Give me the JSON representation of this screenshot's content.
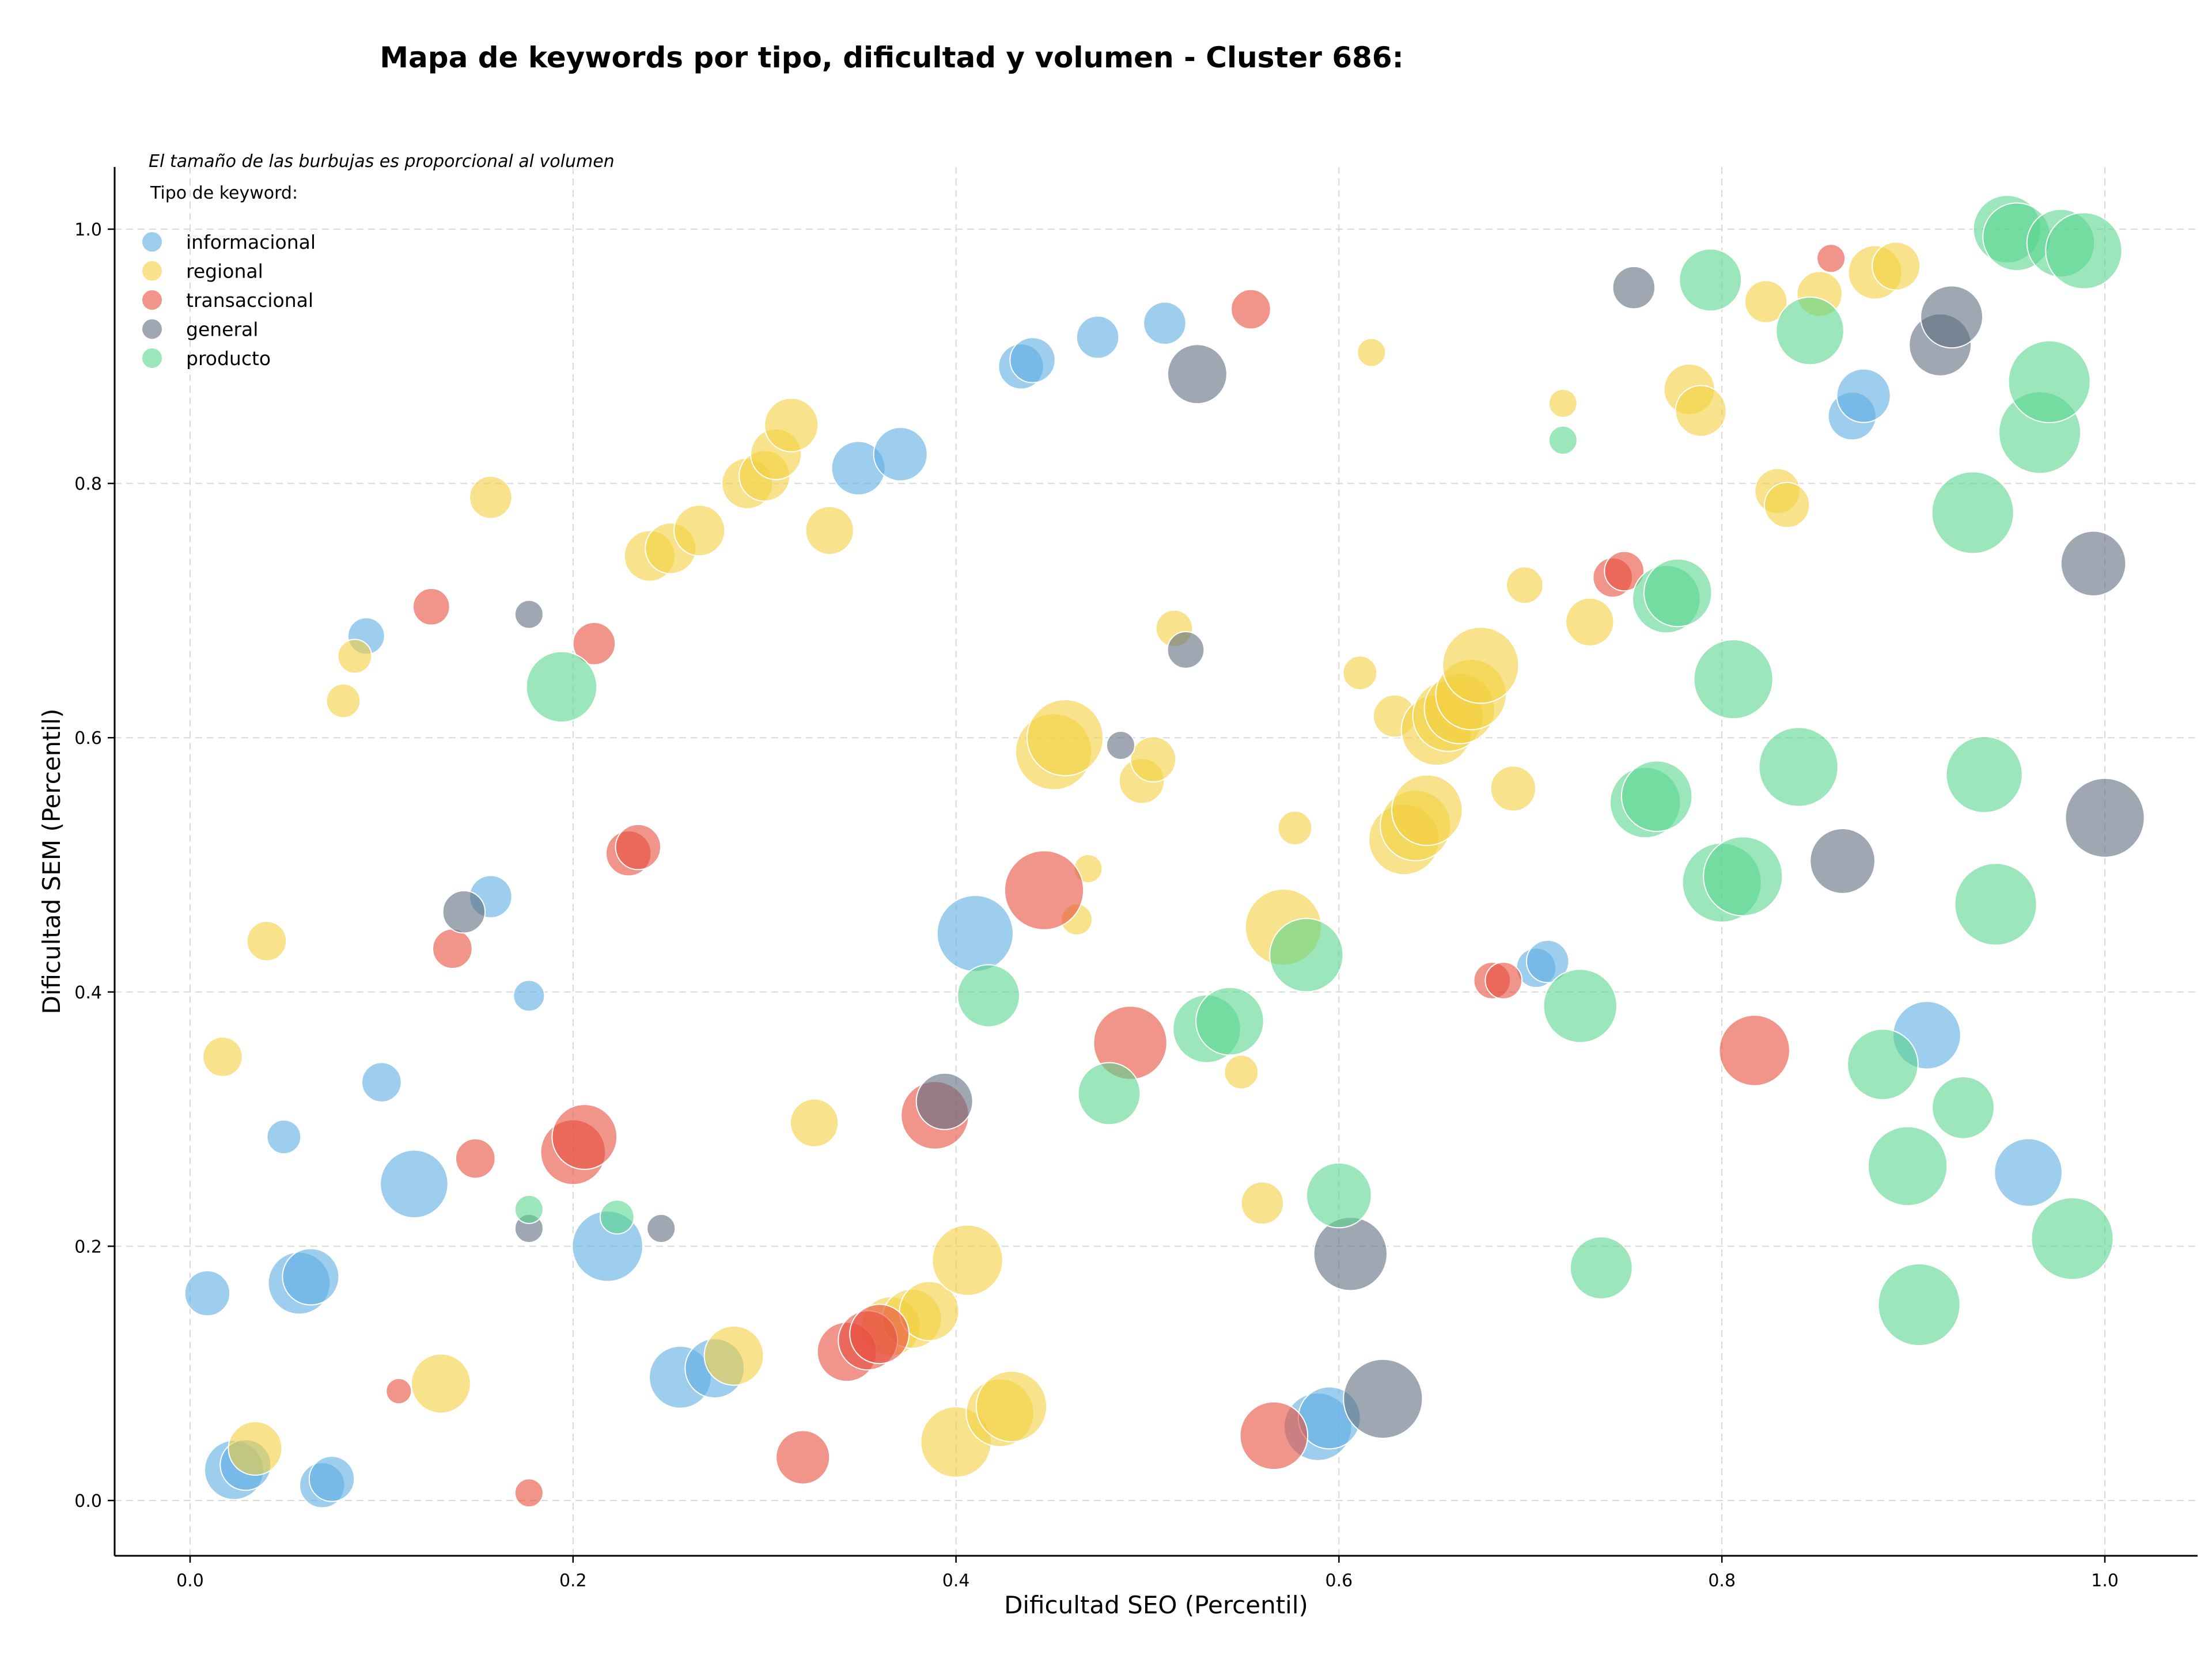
{
  "chart_data": {
    "type": "scatter",
    "title": "Mapa de keywords por tipo, dificultad y volumen - Cluster 686:",
    "xlabel": "Dificultad SEO (Percentil)",
    "ylabel": "Dificultad SEM (Percentil)",
    "xlim": [
      -0.04,
      1.05
    ],
    "ylim": [
      -0.04,
      1.05
    ],
    "xticks": [
      "0.0",
      "0.2",
      "0.4",
      "0.6",
      "0.8",
      "1.0"
    ],
    "yticks": [
      "0.0",
      "0.2",
      "0.4",
      "0.6",
      "0.8",
      "1.0"
    ],
    "grid": true,
    "legend_placement": "top-left",
    "legend_title": "Tipo de keyword:",
    "note": "El tamaño de las burbujas es proporcional al volumen",
    "series": [
      {
        "name": "informacional",
        "color": "#5DADE2",
        "points": [
          {
            "x": 0.009,
            "y": 0.163,
            "r": 16
          },
          {
            "x": 0.023,
            "y": 0.024,
            "r": 21
          },
          {
            "x": 0.029,
            "y": 0.028,
            "r": 18
          },
          {
            "x": 0.049,
            "y": 0.286,
            "r": 12
          },
          {
            "x": 0.057,
            "y": 0.171,
            "r": 22
          },
          {
            "x": 0.063,
            "y": 0.176,
            "r": 20
          },
          {
            "x": 0.069,
            "y": 0.012,
            "r": 16
          },
          {
            "x": 0.074,
            "y": 0.017,
            "r": 16
          },
          {
            "x": 0.092,
            "y": 0.68,
            "r": 13
          },
          {
            "x": 0.1,
            "y": 0.329,
            "r": 14
          },
          {
            "x": 0.117,
            "y": 0.249,
            "r": 24
          },
          {
            "x": 0.157,
            "y": 0.475,
            "r": 15
          },
          {
            "x": 0.177,
            "y": 0.397,
            "r": 11
          },
          {
            "x": 0.218,
            "y": 0.2,
            "r": 25
          },
          {
            "x": 0.256,
            "y": 0.097,
            "r": 22
          },
          {
            "x": 0.274,
            "y": 0.104,
            "r": 21
          },
          {
            "x": 0.349,
            "y": 0.812,
            "r": 19
          },
          {
            "x": 0.371,
            "y": 0.823,
            "r": 19
          },
          {
            "x": 0.41,
            "y": 0.446,
            "r": 27
          },
          {
            "x": 0.434,
            "y": 0.892,
            "r": 16
          },
          {
            "x": 0.44,
            "y": 0.897,
            "r": 16
          },
          {
            "x": 0.474,
            "y": 0.915,
            "r": 15
          },
          {
            "x": 0.509,
            "y": 0.926,
            "r": 15
          },
          {
            "x": 0.589,
            "y": 0.058,
            "r": 24
          },
          {
            "x": 0.595,
            "y": 0.065,
            "r": 22
          },
          {
            "x": 0.703,
            "y": 0.419,
            "r": 14
          },
          {
            "x": 0.709,
            "y": 0.424,
            "r": 15
          },
          {
            "x": 0.868,
            "y": 0.853,
            "r": 17
          },
          {
            "x": 0.874,
            "y": 0.869,
            "r": 19
          },
          {
            "x": 0.907,
            "y": 0.366,
            "r": 24
          },
          {
            "x": 0.96,
            "y": 0.258,
            "r": 24
          }
        ]
      },
      {
        "name": "regional",
        "color": "#F4D03F",
        "points": [
          {
            "x": 0.017,
            "y": 0.349,
            "r": 14
          },
          {
            "x": 0.034,
            "y": 0.041,
            "r": 19
          },
          {
            "x": 0.04,
            "y": 0.44,
            "r": 14
          },
          {
            "x": 0.08,
            "y": 0.629,
            "r": 12
          },
          {
            "x": 0.086,
            "y": 0.664,
            "r": 12
          },
          {
            "x": 0.131,
            "y": 0.092,
            "r": 21
          },
          {
            "x": 0.157,
            "y": 0.789,
            "r": 15
          },
          {
            "x": 0.24,
            "y": 0.743,
            "r": 18
          },
          {
            "x": 0.251,
            "y": 0.749,
            "r": 18
          },
          {
            "x": 0.266,
            "y": 0.763,
            "r": 18
          },
          {
            "x": 0.284,
            "y": 0.114,
            "r": 21
          },
          {
            "x": 0.291,
            "y": 0.8,
            "r": 18
          },
          {
            "x": 0.3,
            "y": 0.806,
            "r": 18
          },
          {
            "x": 0.306,
            "y": 0.823,
            "r": 18
          },
          {
            "x": 0.314,
            "y": 0.846,
            "r": 19
          },
          {
            "x": 0.326,
            "y": 0.297,
            "r": 17
          },
          {
            "x": 0.334,
            "y": 0.763,
            "r": 17
          },
          {
            "x": 0.366,
            "y": 0.137,
            "r": 21
          },
          {
            "x": 0.377,
            "y": 0.143,
            "r": 21
          },
          {
            "x": 0.386,
            "y": 0.149,
            "r": 21
          },
          {
            "x": 0.4,
            "y": 0.046,
            "r": 25
          },
          {
            "x": 0.406,
            "y": 0.189,
            "r": 25
          },
          {
            "x": 0.423,
            "y": 0.069,
            "r": 24
          },
          {
            "x": 0.429,
            "y": 0.074,
            "r": 25
          },
          {
            "x": 0.451,
            "y": 0.589,
            "r": 27
          },
          {
            "x": 0.457,
            "y": 0.6,
            "r": 27
          },
          {
            "x": 0.463,
            "y": 0.457,
            "r": 11
          },
          {
            "x": 0.469,
            "y": 0.497,
            "r": 10
          },
          {
            "x": 0.497,
            "y": 0.566,
            "r": 16
          },
          {
            "x": 0.503,
            "y": 0.583,
            "r": 16
          },
          {
            "x": 0.514,
            "y": 0.686,
            "r": 13
          },
          {
            "x": 0.549,
            "y": 0.337,
            "r": 12
          },
          {
            "x": 0.56,
            "y": 0.234,
            "r": 15
          },
          {
            "x": 0.571,
            "y": 0.451,
            "r": 27
          },
          {
            "x": 0.577,
            "y": 0.529,
            "r": 12
          },
          {
            "x": 0.611,
            "y": 0.651,
            "r": 12
          },
          {
            "x": 0.617,
            "y": 0.903,
            "r": 10
          },
          {
            "x": 0.629,
            "y": 0.617,
            "r": 15
          },
          {
            "x": 0.634,
            "y": 0.52,
            "r": 25
          },
          {
            "x": 0.64,
            "y": 0.531,
            "r": 25
          },
          {
            "x": 0.646,
            "y": 0.543,
            "r": 25
          },
          {
            "x": 0.651,
            "y": 0.606,
            "r": 25
          },
          {
            "x": 0.657,
            "y": 0.617,
            "r": 25
          },
          {
            "x": 0.663,
            "y": 0.623,
            "r": 25
          },
          {
            "x": 0.669,
            "y": 0.634,
            "r": 25
          },
          {
            "x": 0.674,
            "y": 0.657,
            "r": 27
          },
          {
            "x": 0.691,
            "y": 0.56,
            "r": 16
          },
          {
            "x": 0.697,
            "y": 0.72,
            "r": 13
          },
          {
            "x": 0.717,
            "y": 0.863,
            "r": 10
          },
          {
            "x": 0.731,
            "y": 0.691,
            "r": 17
          },
          {
            "x": 0.783,
            "y": 0.874,
            "r": 18
          },
          {
            "x": 0.789,
            "y": 0.857,
            "r": 18
          },
          {
            "x": 0.823,
            "y": 0.943,
            "r": 15
          },
          {
            "x": 0.829,
            "y": 0.794,
            "r": 16
          },
          {
            "x": 0.834,
            "y": 0.783,
            "r": 16
          },
          {
            "x": 0.851,
            "y": 0.949,
            "r": 16
          },
          {
            "x": 0.88,
            "y": 0.966,
            "r": 19
          },
          {
            "x": 0.891,
            "y": 0.971,
            "r": 17
          }
        ]
      },
      {
        "name": "transaccional",
        "color": "#E74C3C",
        "points": [
          {
            "x": 0.109,
            "y": 0.086,
            "r": 9
          },
          {
            "x": 0.126,
            "y": 0.703,
            "r": 13
          },
          {
            "x": 0.137,
            "y": 0.434,
            "r": 14
          },
          {
            "x": 0.149,
            "y": 0.269,
            "r": 14
          },
          {
            "x": 0.177,
            "y": 0.006,
            "r": 10
          },
          {
            "x": 0.2,
            "y": 0.274,
            "r": 23
          },
          {
            "x": 0.206,
            "y": 0.286,
            "r": 23
          },
          {
            "x": 0.211,
            "y": 0.674,
            "r": 15
          },
          {
            "x": 0.229,
            "y": 0.509,
            "r": 16
          },
          {
            "x": 0.234,
            "y": 0.514,
            "r": 16
          },
          {
            "x": 0.32,
            "y": 0.034,
            "r": 19
          },
          {
            "x": 0.343,
            "y": 0.117,
            "r": 21
          },
          {
            "x": 0.354,
            "y": 0.126,
            "r": 21
          },
          {
            "x": 0.36,
            "y": 0.131,
            "r": 21
          },
          {
            "x": 0.389,
            "y": 0.303,
            "r": 24
          },
          {
            "x": 0.446,
            "y": 0.48,
            "r": 28
          },
          {
            "x": 0.491,
            "y": 0.36,
            "r": 26
          },
          {
            "x": 0.554,
            "y": 0.937,
            "r": 14
          },
          {
            "x": 0.566,
            "y": 0.051,
            "r": 24
          },
          {
            "x": 0.68,
            "y": 0.409,
            "r": 13
          },
          {
            "x": 0.686,
            "y": 0.409,
            "r": 13
          },
          {
            "x": 0.743,
            "y": 0.726,
            "r": 14
          },
          {
            "x": 0.749,
            "y": 0.731,
            "r": 14
          },
          {
            "x": 0.817,
            "y": 0.354,
            "r": 25
          },
          {
            "x": 0.857,
            "y": 0.977,
            "r": 10
          }
        ]
      },
      {
        "name": "general",
        "color": "#5D6D7E",
        "points": [
          {
            "x": 0.143,
            "y": 0.463,
            "r": 15
          },
          {
            "x": 0.177,
            "y": 0.214,
            "r": 10
          },
          {
            "x": 0.177,
            "y": 0.697,
            "r": 10
          },
          {
            "x": 0.246,
            "y": 0.214,
            "r": 10
          },
          {
            "x": 0.394,
            "y": 0.314,
            "r": 20
          },
          {
            "x": 0.486,
            "y": 0.594,
            "r": 10
          },
          {
            "x": 0.52,
            "y": 0.669,
            "r": 13
          },
          {
            "x": 0.526,
            "y": 0.886,
            "r": 21
          },
          {
            "x": 0.606,
            "y": 0.194,
            "r": 26
          },
          {
            "x": 0.623,
            "y": 0.08,
            "r": 28
          },
          {
            "x": 0.754,
            "y": 0.954,
            "r": 15
          },
          {
            "x": 0.863,
            "y": 0.503,
            "r": 23
          },
          {
            "x": 0.914,
            "y": 0.909,
            "r": 22
          },
          {
            "x": 0.92,
            "y": 0.931,
            "r": 22
          },
          {
            "x": 0.994,
            "y": 0.737,
            "r": 23
          },
          {
            "x": 1.0,
            "y": 0.537,
            "r": 28
          }
        ]
      },
      {
        "name": "producto",
        "color": "#58D68D",
        "points": [
          {
            "x": 0.177,
            "y": 0.229,
            "r": 10
          },
          {
            "x": 0.223,
            "y": 0.223,
            "r": 12
          },
          {
            "x": 0.194,
            "y": 0.64,
            "r": 25
          },
          {
            "x": 0.417,
            "y": 0.397,
            "r": 22
          },
          {
            "x": 0.48,
            "y": 0.32,
            "r": 22
          },
          {
            "x": 0.531,
            "y": 0.371,
            "r": 24
          },
          {
            "x": 0.543,
            "y": 0.377,
            "r": 24
          },
          {
            "x": 0.583,
            "y": 0.429,
            "r": 26
          },
          {
            "x": 0.6,
            "y": 0.24,
            "r": 23
          },
          {
            "x": 0.717,
            "y": 0.834,
            "r": 10
          },
          {
            "x": 0.726,
            "y": 0.389,
            "r": 26
          },
          {
            "x": 0.737,
            "y": 0.183,
            "r": 22
          },
          {
            "x": 0.76,
            "y": 0.549,
            "r": 25
          },
          {
            "x": 0.766,
            "y": 0.554,
            "r": 25
          },
          {
            "x": 0.771,
            "y": 0.709,
            "r": 24
          },
          {
            "x": 0.777,
            "y": 0.714,
            "r": 24
          },
          {
            "x": 0.794,
            "y": 0.96,
            "r": 22
          },
          {
            "x": 0.8,
            "y": 0.486,
            "r": 28
          },
          {
            "x": 0.806,
            "y": 0.646,
            "r": 28
          },
          {
            "x": 0.811,
            "y": 0.491,
            "r": 28
          },
          {
            "x": 0.84,
            "y": 0.577,
            "r": 28
          },
          {
            "x": 0.846,
            "y": 0.92,
            "r": 24
          },
          {
            "x": 0.884,
            "y": 0.343,
            "r": 25
          },
          {
            "x": 0.897,
            "y": 0.263,
            "r": 28
          },
          {
            "x": 0.903,
            "y": 0.154,
            "r": 29
          },
          {
            "x": 0.926,
            "y": 0.309,
            "r": 22
          },
          {
            "x": 0.931,
            "y": 0.777,
            "r": 29
          },
          {
            "x": 0.937,
            "y": 0.571,
            "r": 27
          },
          {
            "x": 0.943,
            "y": 0.469,
            "r": 29
          },
          {
            "x": 0.949,
            "y": 1.0,
            "r": 24
          },
          {
            "x": 0.954,
            "y": 0.994,
            "r": 24
          },
          {
            "x": 0.966,
            "y": 0.84,
            "r": 29
          },
          {
            "x": 0.971,
            "y": 0.88,
            "r": 29
          },
          {
            "x": 0.977,
            "y": 0.989,
            "r": 24
          },
          {
            "x": 0.983,
            "y": 0.206,
            "r": 29
          },
          {
            "x": 0.989,
            "y": 0.983,
            "r": 27
          }
        ]
      }
    ]
  }
}
